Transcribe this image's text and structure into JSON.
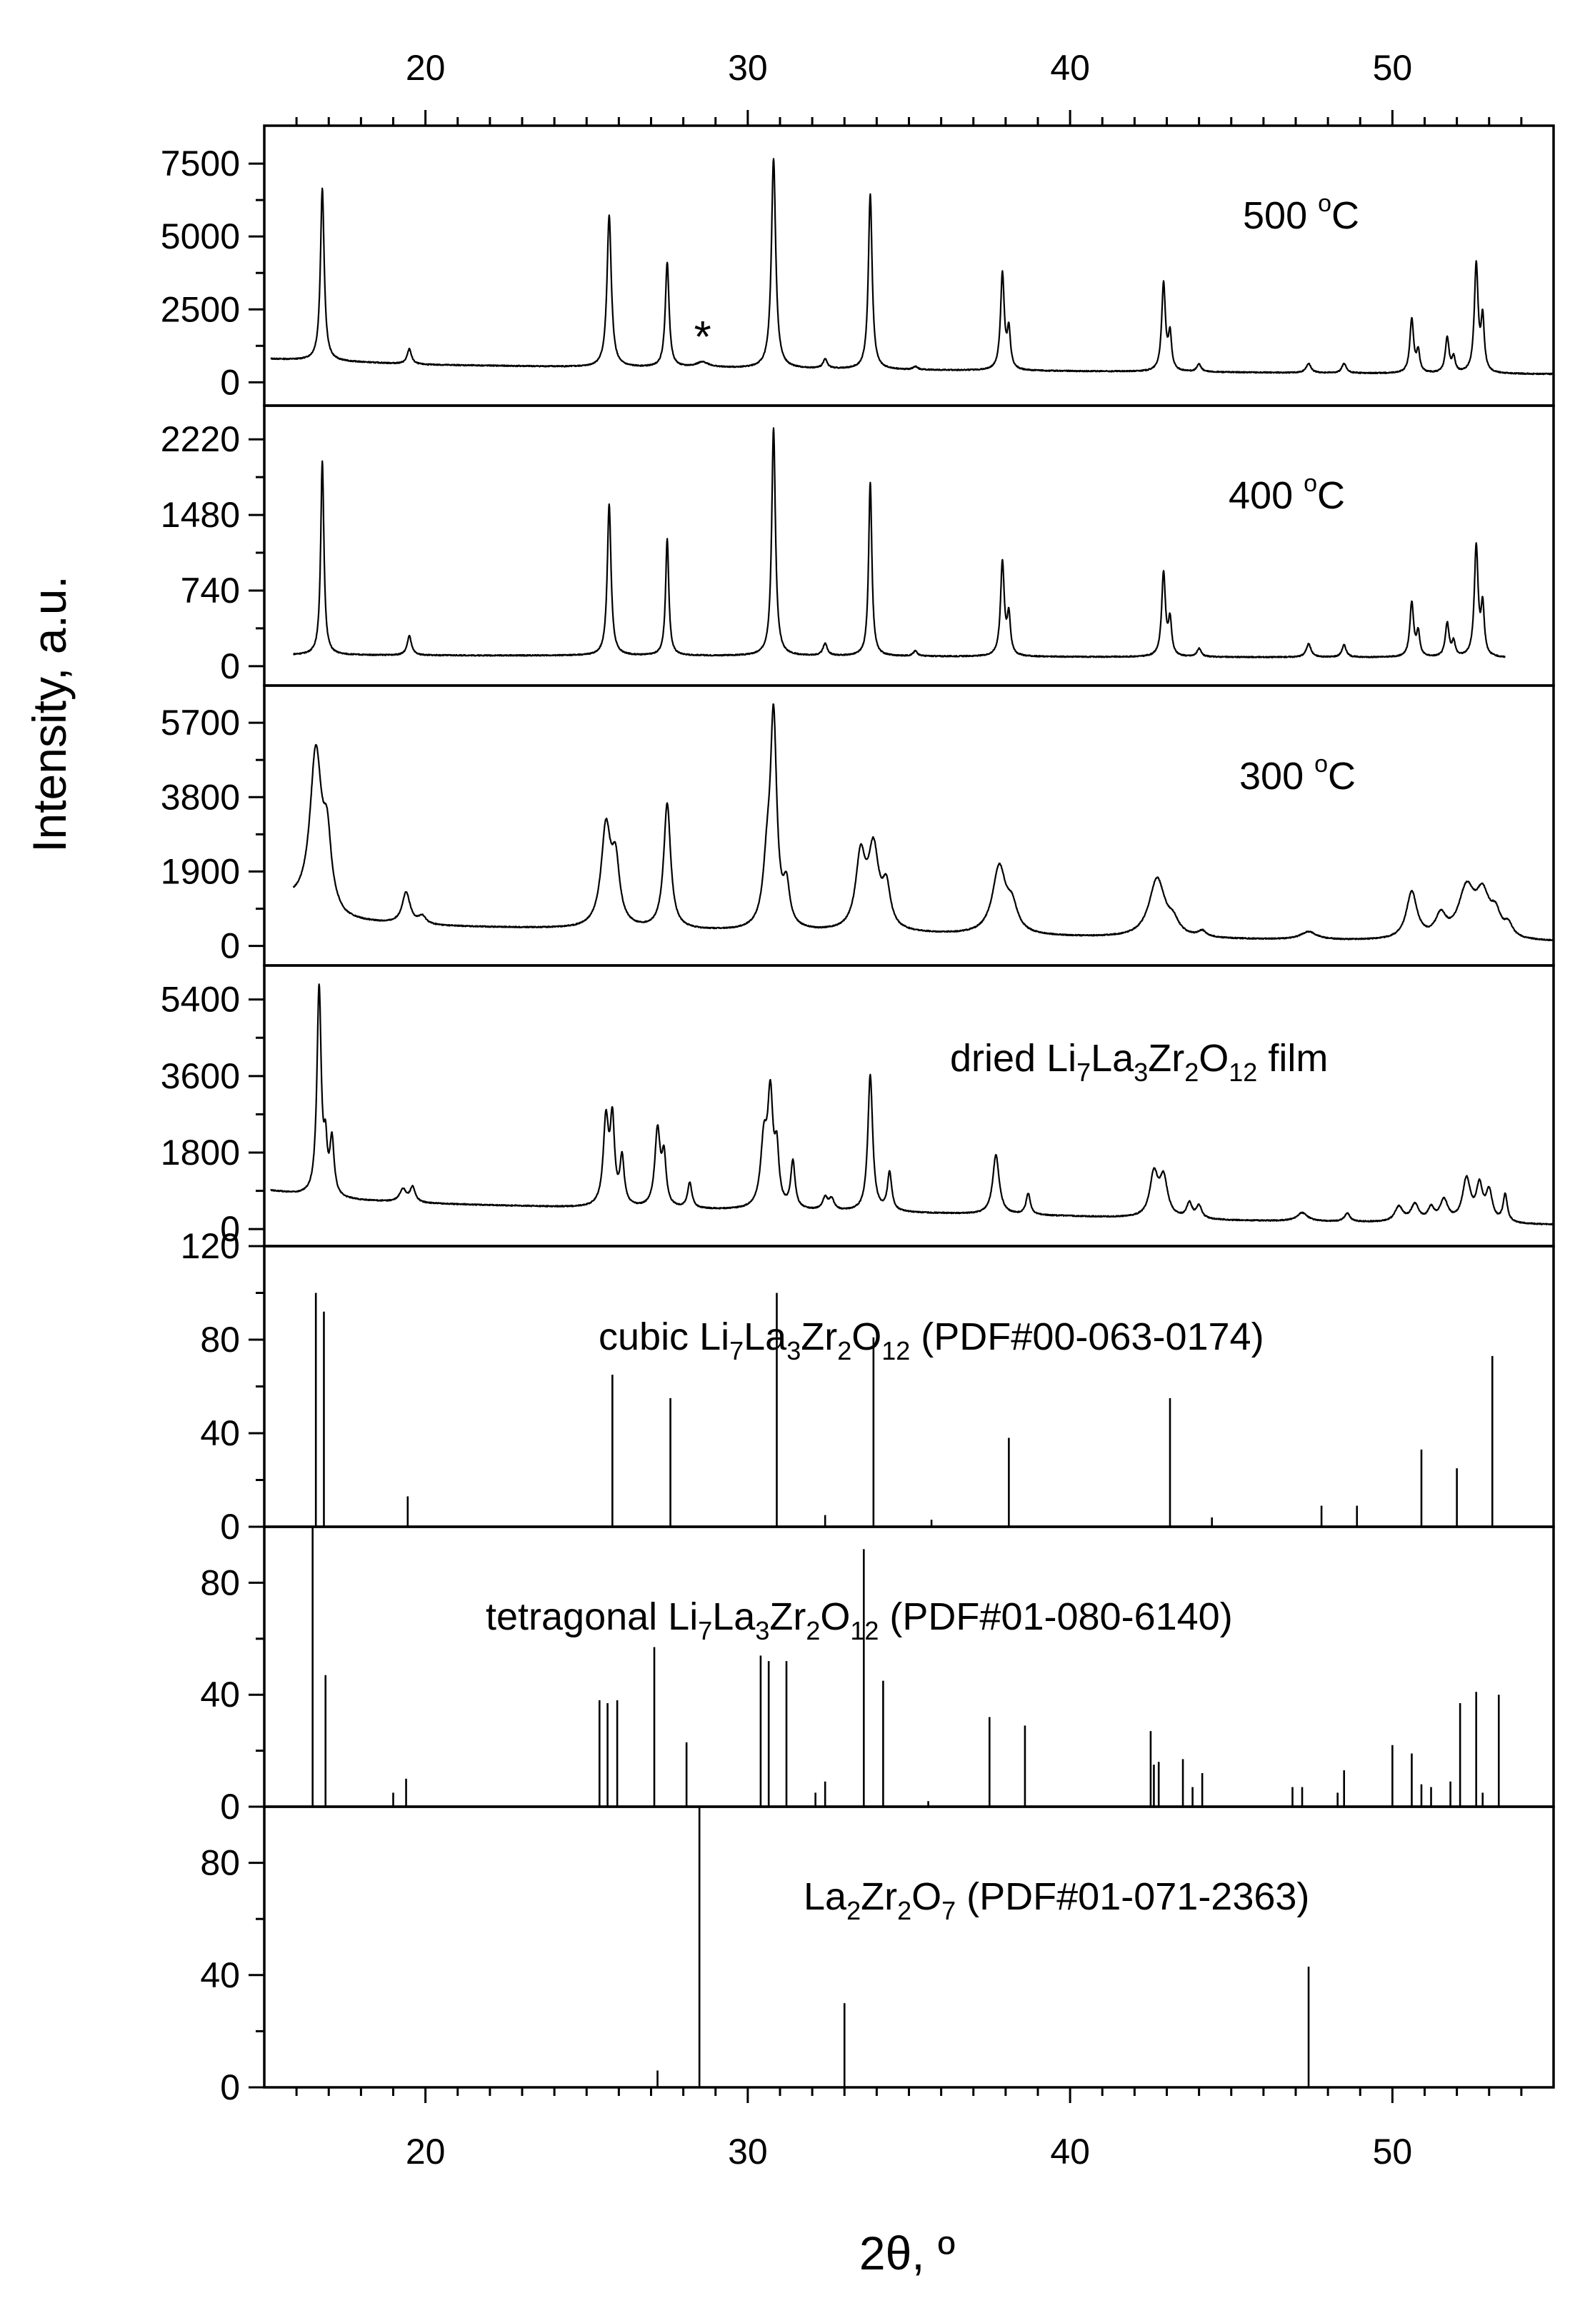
{
  "chart_data": {
    "type": "line",
    "ylabel": "Intensity, a.u.",
    "xlabel": "2θ, º",
    "xlim": [
      15,
      55
    ],
    "x_ticks": [
      20,
      30,
      40,
      50
    ],
    "grid": false,
    "legend": "none",
    "panels": [
      {
        "id": "p500",
        "kind": "line",
        "label_text": "500 ",
        "label_sup": "o",
        "label_tail": "C",
        "ylim": [
          -800,
          8800
        ],
        "yticks": [
          0,
          2500,
          5000,
          7500
        ],
        "ytick_labels": [
          "0",
          "2500",
          "5000",
          "7500"
        ],
        "baseline": [
          [
            15.2,
            800
          ],
          [
            20,
            600
          ],
          [
            25,
            520
          ],
          [
            30,
            480
          ],
          [
            35,
            420
          ],
          [
            40,
            380
          ],
          [
            45,
            340
          ],
          [
            50,
            300
          ],
          [
            55,
            280
          ]
        ],
        "peaks": [
          [
            16.8,
            5900,
            0.07
          ],
          [
            19.5,
            520,
            0.08
          ],
          [
            25.7,
            5200,
            0.08
          ],
          [
            27.5,
            3600,
            0.07
          ],
          [
            28.6,
            180,
            0.25
          ],
          [
            30.8,
            7200,
            0.08
          ],
          [
            32.4,
            320,
            0.08
          ],
          [
            33.8,
            6000,
            0.07
          ],
          [
            35.2,
            110,
            0.08
          ],
          [
            37.9,
            3300,
            0.07
          ],
          [
            38.1,
            1300,
            0.06
          ],
          [
            42.9,
            3000,
            0.07
          ],
          [
            43.1,
            1200,
            0.06
          ],
          [
            44.0,
            260,
            0.08
          ],
          [
            47.4,
            320,
            0.09
          ],
          [
            48.5,
            330,
            0.08
          ],
          [
            50.6,
            1850,
            0.07
          ],
          [
            50.8,
            700,
            0.06
          ],
          [
            51.7,
            1200,
            0.07
          ],
          [
            51.9,
            500,
            0.06
          ],
          [
            52.6,
            3700,
            0.07
          ],
          [
            52.8,
            1800,
            0.06
          ]
        ],
        "annotation": "*",
        "annotation_x": 28.6
      },
      {
        "id": "p400",
        "kind": "line",
        "label_text": "400 ",
        "label_sup": "o",
        "label_tail": "C",
        "ylim": [
          -190,
          2550
        ],
        "yticks": [
          0,
          740,
          1480,
          2220
        ],
        "ytick_labels": [
          "0",
          "740",
          "1480",
          "2220"
        ],
        "baseline": [
          [
            15.9,
            110
          ],
          [
            20,
            105
          ],
          [
            30,
            100
          ],
          [
            40,
            90
          ],
          [
            50,
            85
          ],
          [
            53.5,
            80
          ]
        ],
        "peaks": [
          [
            16.8,
            1900,
            0.06
          ],
          [
            19.5,
            190,
            0.08
          ],
          [
            25.7,
            1480,
            0.07
          ],
          [
            27.5,
            1140,
            0.06
          ],
          [
            30.8,
            2230,
            0.07
          ],
          [
            32.4,
            120,
            0.08
          ],
          [
            33.8,
            1700,
            0.06
          ],
          [
            35.2,
            50,
            0.08
          ],
          [
            37.9,
            920,
            0.07
          ],
          [
            38.1,
            380,
            0.06
          ],
          [
            42.9,
            820,
            0.07
          ],
          [
            43.1,
            340,
            0.06
          ],
          [
            44.0,
            80,
            0.08
          ],
          [
            47.4,
            130,
            0.09
          ],
          [
            48.5,
            120,
            0.08
          ],
          [
            50.6,
            530,
            0.07
          ],
          [
            50.8,
            230,
            0.06
          ],
          [
            51.7,
            330,
            0.07
          ],
          [
            51.9,
            140,
            0.06
          ],
          [
            52.6,
            1080,
            0.07
          ],
          [
            52.8,
            480,
            0.06
          ]
        ]
      },
      {
        "id": "p300",
        "kind": "line",
        "label_text": "300 ",
        "label_sup": "o",
        "label_tail": "C",
        "ylim": [
          -500,
          6650
        ],
        "yticks": [
          0,
          1900,
          3800,
          5700
        ],
        "ytick_labels": [
          "0",
          "1900",
          "3800",
          "5700"
        ],
        "baseline": [
          [
            15.9,
            1100
          ],
          [
            17.5,
            600
          ],
          [
            20,
            500
          ],
          [
            25,
            420
          ],
          [
            30,
            360
          ],
          [
            35,
            300
          ],
          [
            40,
            220
          ],
          [
            45,
            160
          ],
          [
            50,
            120
          ],
          [
            55,
            100
          ]
        ],
        "peaks": [
          [
            16.6,
            4000,
            0.22
          ],
          [
            16.95,
            1600,
            0.15
          ],
          [
            19.4,
            800,
            0.15
          ],
          [
            19.9,
            200,
            0.15
          ],
          [
            25.6,
            2500,
            0.18
          ],
          [
            25.9,
            1500,
            0.15
          ],
          [
            27.5,
            3200,
            0.13
          ],
          [
            30.6,
            1400,
            0.15
          ],
          [
            30.8,
            5200,
            0.12
          ],
          [
            31.2,
            1000,
            0.12
          ],
          [
            33.5,
            1800,
            0.18
          ],
          [
            33.9,
            2000,
            0.2
          ],
          [
            34.3,
            1000,
            0.15
          ],
          [
            37.8,
            1700,
            0.25
          ],
          [
            38.2,
            600,
            0.2
          ],
          [
            42.7,
            1500,
            0.3
          ],
          [
            43.2,
            300,
            0.2
          ],
          [
            44.1,
            150,
            0.15
          ],
          [
            47.4,
            200,
            0.3
          ],
          [
            50.6,
            1200,
            0.2
          ],
          [
            51.5,
            550,
            0.2
          ],
          [
            52.3,
            1250,
            0.3
          ],
          [
            52.8,
            1000,
            0.25
          ],
          [
            53.2,
            550,
            0.2
          ],
          [
            53.6,
            300,
            0.15
          ]
        ]
      },
      {
        "id": "pdried",
        "kind": "line",
        "label_text": "dried Li",
        "label_parts": [
          [
            "dried Li",
            ""
          ],
          [
            "7",
            "sub"
          ],
          [
            "La",
            ""
          ],
          [
            "3",
            "sub"
          ],
          [
            "Zr",
            ""
          ],
          [
            "2",
            "sub"
          ],
          [
            "O",
            ""
          ],
          [
            "12",
            "sub"
          ],
          [
            " film",
            ""
          ]
        ],
        "ylim": [
          -400,
          6200
        ],
        "yticks": [
          0,
          1800,
          3600,
          5400
        ],
        "ytick_labels": [
          "0",
          "1800",
          "3600",
          "5400"
        ],
        "baseline": [
          [
            15.2,
            900
          ],
          [
            17,
            700
          ],
          [
            20,
            600
          ],
          [
            25,
            500
          ],
          [
            30,
            440
          ],
          [
            35,
            380
          ],
          [
            40,
            300
          ],
          [
            45,
            200
          ],
          [
            50,
            150
          ],
          [
            55,
            100
          ]
        ],
        "peaks": [
          [
            16.7,
            4900,
            0.08
          ],
          [
            16.9,
            1000,
            0.06
          ],
          [
            17.1,
            1300,
            0.08
          ],
          [
            19.3,
            300,
            0.12
          ],
          [
            19.6,
            350,
            0.1
          ],
          [
            25.6,
            2000,
            0.1
          ],
          [
            25.8,
            1900,
            0.08
          ],
          [
            26.1,
            1100,
            0.08
          ],
          [
            27.2,
            1800,
            0.1
          ],
          [
            27.4,
            1100,
            0.08
          ],
          [
            28.2,
            600,
            0.08
          ],
          [
            30.5,
            1500,
            0.12
          ],
          [
            30.7,
            2500,
            0.1
          ],
          [
            30.9,
            1200,
            0.08
          ],
          [
            31.4,
            1100,
            0.08
          ],
          [
            32.4,
            280,
            0.1
          ],
          [
            32.6,
            250,
            0.1
          ],
          [
            33.8,
            3200,
            0.09
          ],
          [
            34.4,
            900,
            0.08
          ],
          [
            37.7,
            1400,
            0.12
          ],
          [
            38.7,
            500,
            0.08
          ],
          [
            42.6,
            1000,
            0.15
          ],
          [
            42.9,
            900,
            0.15
          ],
          [
            43.7,
            350,
            0.1
          ],
          [
            44.0,
            300,
            0.1
          ],
          [
            47.2,
            200,
            0.2
          ],
          [
            48.6,
            200,
            0.1
          ],
          [
            50.2,
            350,
            0.15
          ],
          [
            50.7,
            400,
            0.15
          ],
          [
            51.2,
            300,
            0.12
          ],
          [
            51.6,
            500,
            0.15
          ],
          [
            52.3,
            1000,
            0.15
          ],
          [
            52.7,
            800,
            0.12
          ],
          [
            53.0,
            700,
            0.12
          ],
          [
            53.5,
            650,
            0.08
          ]
        ]
      },
      {
        "id": "pcubic",
        "kind": "stick",
        "label_parts": [
          [
            "cubic Li",
            ""
          ],
          [
            "7",
            "sub"
          ],
          [
            "La",
            ""
          ],
          [
            "3",
            "sub"
          ],
          [
            "Zr",
            ""
          ],
          [
            "2",
            "sub"
          ],
          [
            "O",
            ""
          ],
          [
            "12",
            "sub"
          ],
          [
            " (PDF#00-063-0174)",
            ""
          ]
        ],
        "ylim": [
          0,
          120
        ],
        "yticks": [
          0,
          40,
          80,
          120
        ],
        "ytick_labels": [
          "0",
          "40",
          "80",
          "120"
        ],
        "sticks": [
          [
            16.6,
            100
          ],
          [
            16.85,
            92
          ],
          [
            19.45,
            13
          ],
          [
            25.8,
            65
          ],
          [
            27.6,
            55
          ],
          [
            30.9,
            100
          ],
          [
            32.4,
            5
          ],
          [
            33.9,
            81
          ],
          [
            35.7,
            3
          ],
          [
            38.1,
            38
          ],
          [
            43.1,
            55
          ],
          [
            44.4,
            4
          ],
          [
            47.8,
            9
          ],
          [
            48.9,
            9
          ],
          [
            50.9,
            33
          ],
          [
            52.0,
            25
          ],
          [
            53.1,
            73
          ]
        ]
      },
      {
        "id": "ptetra",
        "kind": "stick",
        "label_parts": [
          [
            "tetragonal Li",
            ""
          ],
          [
            "7",
            "sub"
          ],
          [
            "La",
            ""
          ],
          [
            "3",
            "sub"
          ],
          [
            "Zr",
            ""
          ],
          [
            "2",
            "sub"
          ],
          [
            "O",
            ""
          ],
          [
            "12",
            "sub"
          ],
          [
            " (PDF#01-080-6140)",
            ""
          ]
        ],
        "ylim": [
          0,
          100
        ],
        "yticks": [
          0,
          40,
          80
        ],
        "ytick_labels": [
          "0",
          "40",
          "80"
        ],
        "sticks": [
          [
            16.5,
            100
          ],
          [
            16.9,
            47
          ],
          [
            19.0,
            5
          ],
          [
            19.4,
            10
          ],
          [
            25.4,
            38
          ],
          [
            25.65,
            37
          ],
          [
            25.95,
            38
          ],
          [
            27.1,
            57
          ],
          [
            28.1,
            23
          ],
          [
            30.4,
            54
          ],
          [
            30.65,
            52
          ],
          [
            31.2,
            52
          ],
          [
            32.1,
            5
          ],
          [
            32.4,
            9
          ],
          [
            33.6,
            92
          ],
          [
            34.2,
            45
          ],
          [
            35.6,
            2
          ],
          [
            37.5,
            32
          ],
          [
            38.6,
            29
          ],
          [
            42.5,
            27
          ],
          [
            42.6,
            15
          ],
          [
            42.75,
            16
          ],
          [
            43.5,
            17
          ],
          [
            43.8,
            7
          ],
          [
            44.1,
            12
          ],
          [
            46.9,
            7
          ],
          [
            47.2,
            7
          ],
          [
            48.3,
            5
          ],
          [
            48.5,
            13
          ],
          [
            50.0,
            22
          ],
          [
            50.6,
            19
          ],
          [
            50.9,
            8
          ],
          [
            51.2,
            7
          ],
          [
            51.8,
            9
          ],
          [
            52.1,
            37
          ],
          [
            52.6,
            41
          ],
          [
            52.8,
            5
          ],
          [
            53.3,
            40
          ]
        ]
      },
      {
        "id": "pla",
        "kind": "stick",
        "label_parts": [
          [
            "La",
            ""
          ],
          [
            "2",
            "sub"
          ],
          [
            "Zr",
            ""
          ],
          [
            "2",
            "sub"
          ],
          [
            "O",
            ""
          ],
          [
            "7",
            "sub"
          ],
          [
            " (PDF#01-071-2363)",
            ""
          ]
        ],
        "ylim": [
          0,
          100
        ],
        "yticks": [
          0,
          40,
          80
        ],
        "ytick_labels": [
          "0",
          "40",
          "80"
        ],
        "sticks": [
          [
            27.2,
            6
          ],
          [
            28.5,
            100
          ],
          [
            33.0,
            30
          ],
          [
            47.4,
            43
          ]
        ]
      }
    ],
    "x_tick_labels": [
      "20",
      "30",
      "40",
      "50"
    ]
  }
}
